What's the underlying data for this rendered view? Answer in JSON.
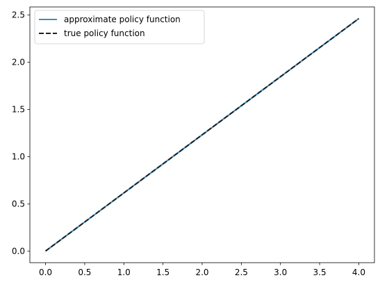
{
  "chart_data": {
    "type": "line",
    "title": "",
    "xlabel": "",
    "ylabel": "",
    "xlim": [
      -0.2,
      4.2
    ],
    "ylim": [
      -0.123,
      2.586
    ],
    "grid": false,
    "legend_position": "top-left",
    "xticks": [
      0.0,
      0.5,
      1.0,
      1.5,
      2.0,
      2.5,
      3.0,
      3.5,
      4.0
    ],
    "yticks": [
      0.0,
      0.5,
      1.0,
      1.5,
      2.0,
      2.5
    ],
    "xtick_labels": [
      "0.0",
      "0.5",
      "1.0",
      "1.5",
      "2.0",
      "2.5",
      "3.0",
      "3.5",
      "4.0"
    ],
    "ytick_labels": [
      "0.0",
      "0.5",
      "1.0",
      "1.5",
      "2.0",
      "2.5"
    ],
    "series": [
      {
        "name": "approximate policy function",
        "color": "#3d8fc4",
        "style": "solid",
        "x": [
          0.0,
          4.0
        ],
        "y": [
          0.0,
          2.463
        ]
      },
      {
        "name": "true policy function",
        "color": "#1f1f1f",
        "style": "dashed",
        "x": [
          0.0,
          4.0
        ],
        "y": [
          0.0,
          2.463
        ]
      }
    ]
  }
}
